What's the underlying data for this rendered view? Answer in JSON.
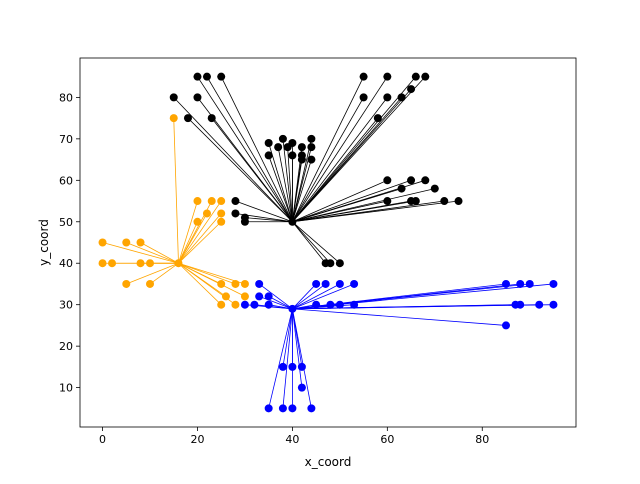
{
  "chart_data": {
    "type": "scatter",
    "title": "",
    "xlabel": "x_coord",
    "ylabel": "y_coord",
    "xlim": [
      -4.75,
      99.75
    ],
    "ylim": [
      0.5,
      89.5
    ],
    "xticks": [
      0,
      20,
      40,
      60,
      80
    ],
    "yticks": [
      10,
      20,
      30,
      40,
      50,
      60,
      70,
      80
    ],
    "grid": false,
    "legend": "none",
    "clusters": [
      {
        "color": "#000000",
        "center": [
          40,
          50
        ],
        "points": [
          [
            15,
            80
          ],
          [
            20,
            85
          ],
          [
            22,
            85
          ],
          [
            25,
            85
          ],
          [
            20,
            80
          ],
          [
            18,
            75
          ],
          [
            23,
            75
          ],
          [
            35,
            69
          ],
          [
            38,
            70
          ],
          [
            39,
            68
          ],
          [
            40,
            69
          ],
          [
            35,
            66
          ],
          [
            37,
            68
          ],
          [
            42,
            68
          ],
          [
            42,
            66
          ],
          [
            42,
            65
          ],
          [
            40,
            66
          ],
          [
            44,
            70
          ],
          [
            44,
            68
          ],
          [
            44,
            65
          ],
          [
            28,
            55
          ],
          [
            28,
            52
          ],
          [
            30,
            51
          ],
          [
            30,
            50
          ],
          [
            55,
            85
          ],
          [
            60,
            85
          ],
          [
            66,
            85
          ],
          [
            68,
            85
          ],
          [
            55,
            80
          ],
          [
            60,
            80
          ],
          [
            63,
            80
          ],
          [
            65,
            82
          ],
          [
            58,
            75
          ],
          [
            60,
            60
          ],
          [
            65,
            60
          ],
          [
            68,
            60
          ],
          [
            70,
            58
          ],
          [
            63,
            58
          ],
          [
            60,
            55
          ],
          [
            65,
            55
          ],
          [
            66,
            55
          ],
          [
            72,
            55
          ],
          [
            75,
            55
          ],
          [
            47,
            40
          ],
          [
            48,
            40
          ],
          [
            50,
            40
          ]
        ]
      },
      {
        "color": "#FFA500",
        "center": [
          16,
          40
        ],
        "points": [
          [
            15,
            75
          ],
          [
            20,
            55
          ],
          [
            23,
            55
          ],
          [
            25,
            55
          ],
          [
            22,
            52
          ],
          [
            25,
            52
          ],
          [
            20,
            50
          ],
          [
            25,
            50
          ],
          [
            0,
            45
          ],
          [
            5,
            45
          ],
          [
            8,
            45
          ],
          [
            0,
            40
          ],
          [
            2,
            40
          ],
          [
            8,
            40
          ],
          [
            10,
            40
          ],
          [
            5,
            35
          ],
          [
            10,
            35
          ],
          [
            25,
            35
          ],
          [
            28,
            35
          ],
          [
            30,
            35
          ],
          [
            26,
            32
          ],
          [
            30,
            32
          ],
          [
            25,
            30
          ],
          [
            28,
            30
          ]
        ]
      },
      {
        "color": "#0000FF",
        "center": [
          40,
          29
        ],
        "points": [
          [
            33,
            35
          ],
          [
            33,
            32
          ],
          [
            35,
            32
          ],
          [
            30,
            30
          ],
          [
            32,
            30
          ],
          [
            35,
            30
          ],
          [
            45,
            35
          ],
          [
            47,
            35
          ],
          [
            50,
            35
          ],
          [
            53,
            35
          ],
          [
            45,
            30
          ],
          [
            48,
            30
          ],
          [
            50,
            30
          ],
          [
            53,
            30
          ],
          [
            85,
            35
          ],
          [
            88,
            35
          ],
          [
            90,
            35
          ],
          [
            95,
            35
          ],
          [
            87,
            30
          ],
          [
            88,
            30
          ],
          [
            92,
            30
          ],
          [
            95,
            30
          ],
          [
            85,
            25
          ],
          [
            38,
            15
          ],
          [
            40,
            15
          ],
          [
            42,
            15
          ],
          [
            42,
            10
          ],
          [
            35,
            5
          ],
          [
            38,
            5
          ],
          [
            40,
            5
          ],
          [
            44,
            5
          ]
        ]
      }
    ]
  }
}
